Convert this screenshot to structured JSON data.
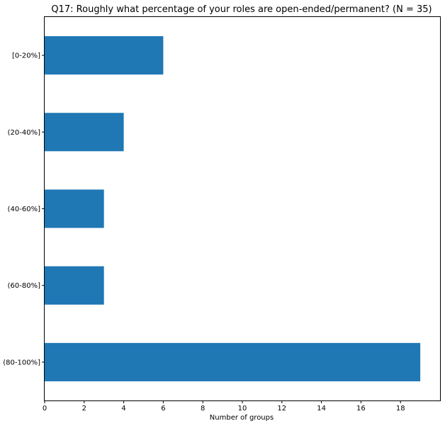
{
  "chart_data": {
    "type": "bar",
    "orientation": "horizontal",
    "title": "Q17: Roughly what percentage of your roles are open-ended/permanent? (N = 35)",
    "xlabel": "Number of groups",
    "ylabel": "",
    "categories": [
      "[0-20%]",
      "(20-40%]",
      "(40-60%]",
      "(60-80%]",
      "(80-100%]"
    ],
    "values": [
      6,
      4,
      3,
      3,
      19
    ],
    "xlim": [
      0,
      20
    ],
    "xticks": [
      0,
      2,
      4,
      6,
      8,
      10,
      12,
      14,
      16,
      18
    ],
    "grid": false,
    "legend": "none",
    "bar_color": "#1f77b4"
  }
}
